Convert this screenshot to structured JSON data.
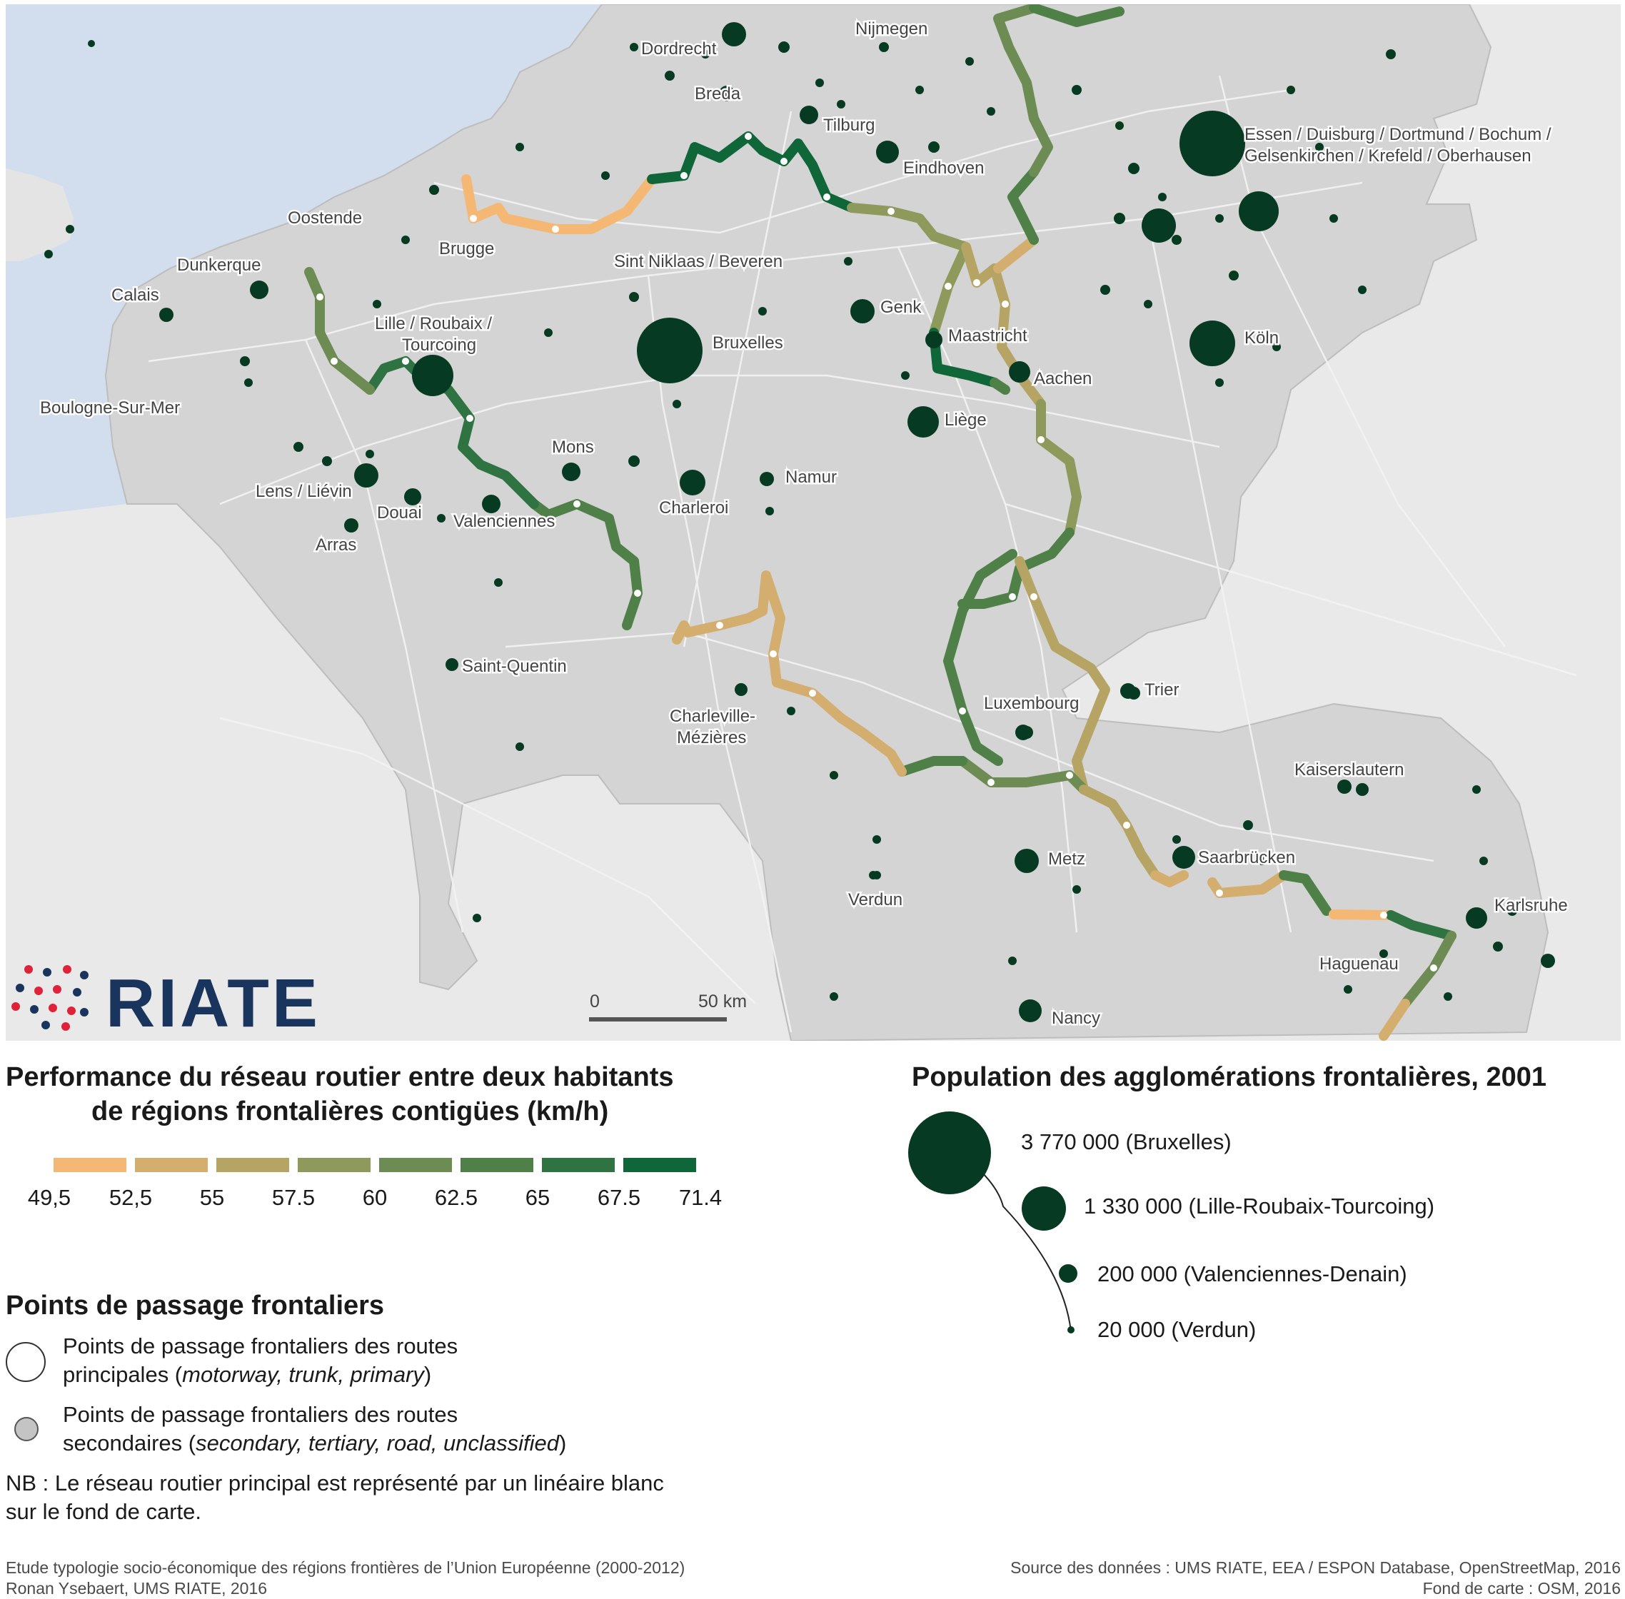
{
  "cities": [
    {
      "name": "Nijmegen"
    },
    {
      "name": "Dordrecht"
    },
    {
      "name": "Breda"
    },
    {
      "name": "Tilburg"
    },
    {
      "name": "Eindhoven"
    },
    {
      "name": "Essen / Duisburg / Dortmund / Bochum /"
    },
    {
      "name": "Gelsenkirchen / Krefeld / Oberhausen"
    },
    {
      "name": "Oostende"
    },
    {
      "name": "Brugge"
    },
    {
      "name": "Dunkerque"
    },
    {
      "name": "Calais"
    },
    {
      "name": "Sint Niklaas / Beveren"
    },
    {
      "name": "Genk"
    },
    {
      "name": "Lille / Roubaix /"
    },
    {
      "name": "Tourcoing"
    },
    {
      "name": "Bruxelles"
    },
    {
      "name": "Maastricht"
    },
    {
      "name": "Köln"
    },
    {
      "name": "Aachen"
    },
    {
      "name": "Boulogne-Sur-Mer"
    },
    {
      "name": "Liège"
    },
    {
      "name": "Mons"
    },
    {
      "name": "Namur"
    },
    {
      "name": "Lens / Liévin"
    },
    {
      "name": "Charleroi"
    },
    {
      "name": "Douai"
    },
    {
      "name": "Valenciennes"
    },
    {
      "name": "Arras"
    },
    {
      "name": "Saint-Quentin"
    },
    {
      "name": "Trier"
    },
    {
      "name": "Charleville-"
    },
    {
      "name": "Mézières"
    },
    {
      "name": "Luxembourg"
    },
    {
      "name": "Kaiserslautern"
    },
    {
      "name": "Metz"
    },
    {
      "name": "Saarbrücken"
    },
    {
      "name": "Verdun"
    },
    {
      "name": "Karlsruhe"
    },
    {
      "name": "Haguenau"
    },
    {
      "name": "Nancy"
    }
  ],
  "scale_bar": {
    "zero": "0",
    "label": "50 km"
  },
  "logo": {
    "text": "RIATE"
  },
  "legend_performance": {
    "title_line1": "Performance du réseau routier entre deux habitants",
    "title_line2": "de régions frontalières contigües (km/h)",
    "ticks": [
      "49,5",
      "52,5",
      "55",
      "57.5",
      "60",
      "62.5",
      "65",
      "67.5",
      "71.4"
    ],
    "colors": [
      "#f5b874",
      "#d4ae6e",
      "#b5a463",
      "#8e9a5c",
      "#6d8c53",
      "#4e8048",
      "#2f7342",
      "#0f6638"
    ]
  },
  "legend_population": {
    "title": "Population des agglomérations frontalières, 2001",
    "items": [
      {
        "label": "3 770 000 (Bruxelles)",
        "value": 3770000
      },
      {
        "label": "1 330 000 (Lille-Roubaix-Tourcoing)",
        "value": 1330000
      },
      {
        "label": "200 000 (Valenciennes-Denain)",
        "value": 200000
      },
      {
        "label": "20 000 (Verdun)",
        "value": 20000
      }
    ],
    "color": "#073a22"
  },
  "legend_points": {
    "title": "Points de passage frontaliers",
    "main_line1": "Points de passage frontaliers des routes",
    "main_line2_pre": "principales (",
    "main_line2_em": "motorway, trunk, primary",
    "main_line2_post": ")",
    "sec_line1": "Points de passage frontaliers des routes",
    "sec_line2_pre": "secondaires (",
    "sec_line2_em": "secondary, tertiary, road, unclassified",
    "sec_line2_post": ")",
    "nb_line1": "NB : Le réseau routier principal est représenté par un linéaire blanc",
    "nb_line2": "sur le fond de carte."
  },
  "footer": {
    "left1": "Etude typologie socio-économique des régions frontières de l’Union Européenne (2000-2012)",
    "left2": "Ronan Ysebaert, UMS RIATE, 2016",
    "right1": "Source des données : UMS RIATE, EEA / ESPON Database, OpenStreetMap, 2016",
    "right2": "Fond de carte : OSM, 2016"
  }
}
